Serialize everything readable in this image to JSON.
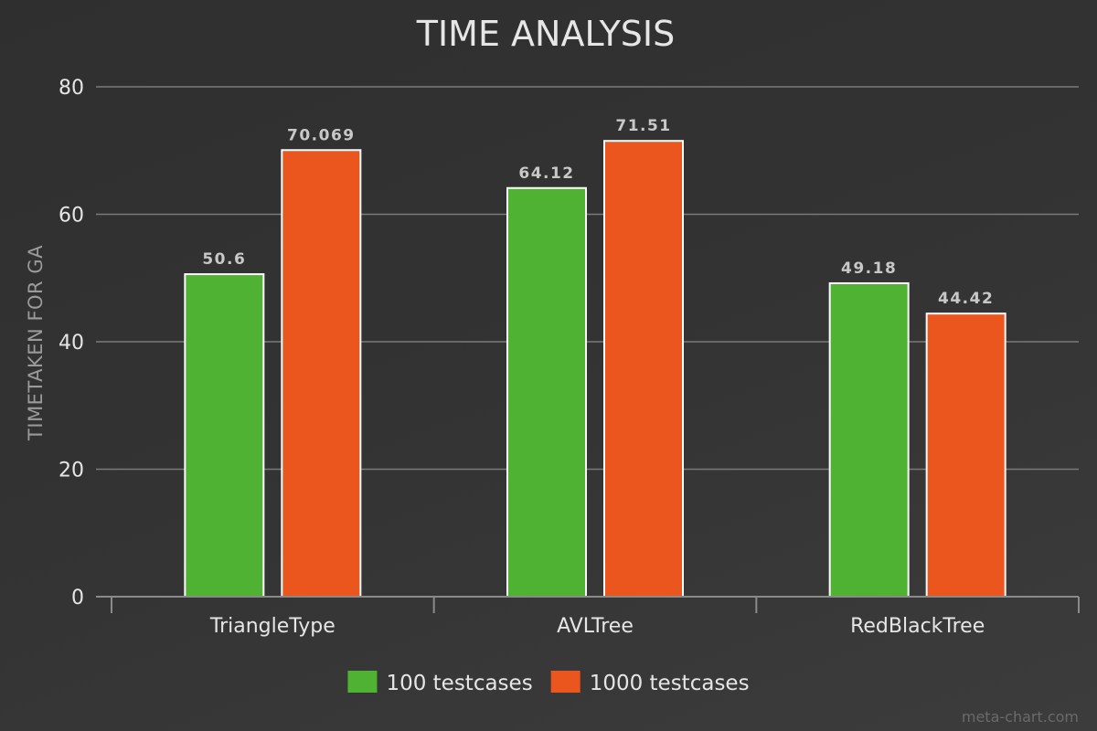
{
  "chart_data": {
    "type": "bar",
    "title": "TIME ANALYSIS",
    "xlabel": "",
    "ylabel": "TIMETAKEN FOR GA",
    "categories": [
      "TriangleType",
      "AVLTree",
      "RedBlackTree"
    ],
    "series": [
      {
        "name": "100 testcases",
        "color": "#4fb233",
        "values": [
          50.6,
          64.12,
          49.18
        ],
        "labels": [
          "50.6",
          "64.12",
          "49.18"
        ]
      },
      {
        "name": "1000 testcases",
        "color": "#ea561d",
        "values": [
          70.069,
          71.51,
          44.42
        ],
        "labels": [
          "70.069",
          "71.51",
          "44.42"
        ]
      }
    ],
    "ylim": [
      0,
      80
    ],
    "yticks": [
      "0",
      "20",
      "40",
      "60",
      "80"
    ],
    "grid": true,
    "legend_position": "bottom-center"
  },
  "watermark": "meta-chart.com"
}
